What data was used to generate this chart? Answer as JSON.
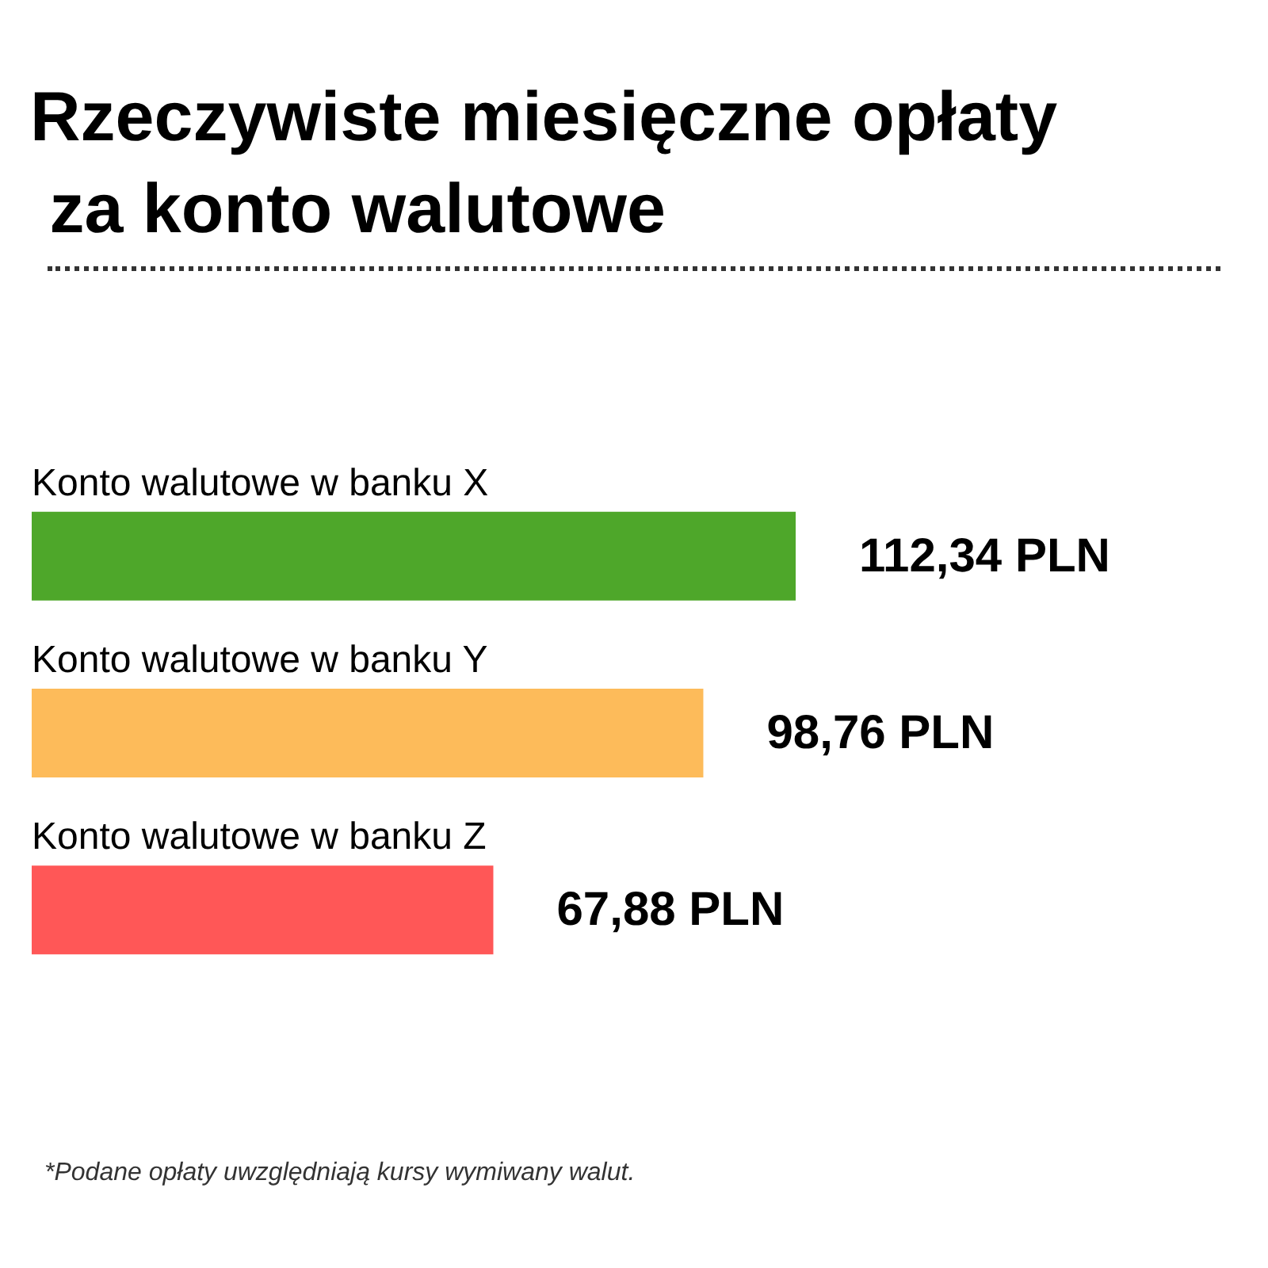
{
  "chart_data": {
    "type": "bar",
    "orientation": "horizontal",
    "title": "Rzeczywiste miesięczne opłaty za konto walutowe",
    "categories": [
      "Konto walutowe w banku X",
      "Konto walutowe w banku Y",
      "Konto walutowe w banku Z"
    ],
    "values": [
      112.34,
      98.76,
      67.88
    ],
    "colors": [
      "#4ea72a",
      "#fdbb5a",
      "#ff5757"
    ],
    "value_labels": [
      "112,34 PLN",
      "98,76 PLN",
      "67,88 PLN"
    ],
    "annotations": [
      "*Podane opłaty uwzględniają kursy wymiwany walut."
    ]
  }
}
